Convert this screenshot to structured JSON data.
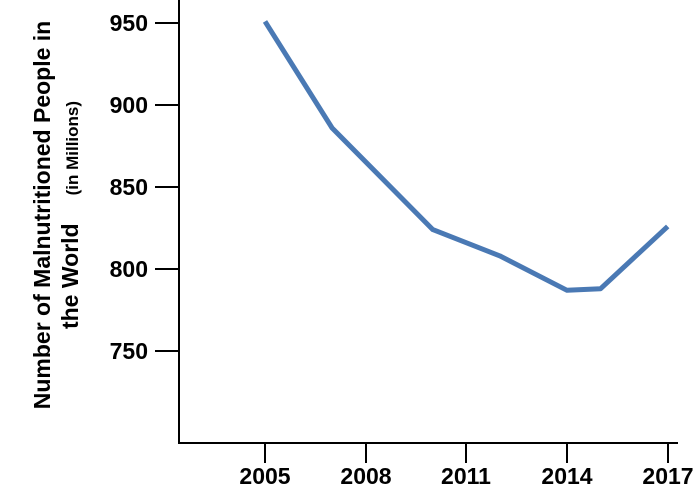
{
  "chart_data": {
    "type": "line",
    "title": "",
    "x": [
      2005,
      2007,
      2010,
      2012,
      2014,
      2015,
      2017
    ],
    "values": [
      951,
      886,
      824,
      808,
      787,
      788,
      826
    ],
    "series_name": "Number of malnutritioned people (millions)",
    "xlabel": "",
    "ylabel_line1": "Number of Malnutritioned People in",
    "ylabel_line2": "the World",
    "ylabel_units": "(in Millions)",
    "x_tick_labels": [
      "2005",
      "2008",
      "2011",
      "2014",
      "2017"
    ],
    "y_tick_labels": [
      "950",
      "900",
      "850",
      "800",
      "750"
    ],
    "y_axis_labeled_range": [
      750,
      950
    ],
    "y_axis_step": 50,
    "x_axis_range": [
      2005,
      2017
    ],
    "grid": false,
    "legend": "none",
    "line_color": "#4a79b4",
    "axis_color": "#000000",
    "background_color": "#ffffff"
  }
}
